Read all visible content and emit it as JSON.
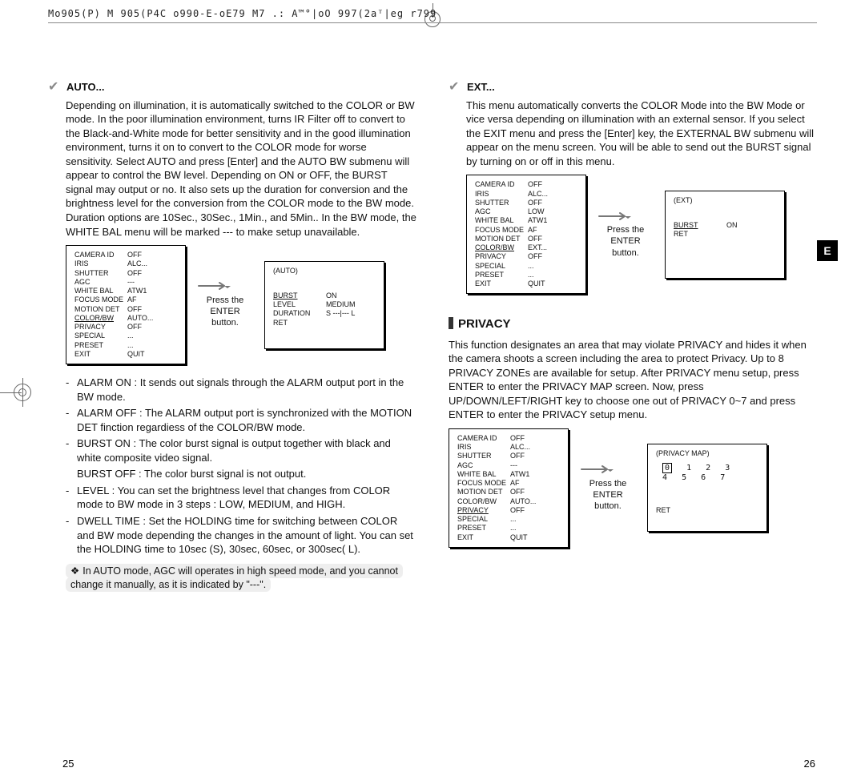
{
  "header_code": "Mo905(P) M 905(P4C o990-E-oE79 M7 .: A™°|oO 997(2aᵀ|eg r799",
  "left": {
    "auto_title": "AUTO...",
    "auto_body": "Depending on illumination, it is automatically switched to the COLOR or BW mode. In the poor illumination environment, turns IR Filter off to convert to the Black-and-White mode for better sensitivity and in the good illumination environment, turns it on to convert to the COLOR mode for worse sensitivity. Select AUTO and press [Enter] and the AUTO BW submenu will appear to control the BW level. Depending on ON or OFF, the BURST signal may output or no. It also sets up the duration for conversion and the brightness level for the conversion from the COLOR mode to the BW mode. Duration options are 10Sec., 30Sec., 1Min., and 5Min.. In the BW mode, the WHITE BAL menu will be marked --- to make setup unavailable.",
    "menu1": {
      "rows": [
        [
          "CAMERA ID",
          "OFF"
        ],
        [
          "IRIS",
          "ALC..."
        ],
        [
          "SHUTTER",
          "OFF"
        ],
        [
          "AGC",
          "---"
        ],
        [
          "WHITE BAL",
          "ATW1"
        ],
        [
          "FOCUS MODE",
          "AF"
        ],
        [
          "MOTION DET",
          "OFF"
        ],
        [
          "COLOR/BW",
          "AUTO..."
        ],
        [
          "PRIVACY",
          "OFF"
        ],
        [
          "SPECIAL",
          "..."
        ],
        [
          "PRESET",
          "..."
        ],
        [
          "EXIT",
          "QUIT"
        ]
      ],
      "highlight": 7
    },
    "menu1_caption": "Press the ENTER button.",
    "menu1b": {
      "title": "(AUTO)",
      "rows": [
        [
          "BURST",
          "ON"
        ],
        [
          "LEVEL",
          "MEDIUM"
        ],
        [
          "DURATION",
          "S ---|--- L"
        ],
        [
          "RET",
          ""
        ]
      ],
      "highlight": 0
    },
    "bullets": [
      {
        "lead": "ALARM ON :",
        "text": "It sends out signals through the ALARM output port in the BW mode."
      },
      {
        "lead": "ALARM OFF :",
        "text": "The ALARM output port is synchronized with the MOTION DET finction regardiess of the COLOR/BW mode."
      },
      {
        "lead": "BURST ON :",
        "text": "The color burst signal is output together with black and white composite video signal.",
        "sub": "BURST OFF : The color burst signal is not output."
      },
      {
        "lead": "LEVEL :",
        "text": "You can set the brightness level that changes from COLOR mode to BW mode in 3 steps : LOW, MEDIUM, and HIGH."
      },
      {
        "lead": "DWELL TIME :",
        "text": "Set the HOLDING time for switching between COLOR and BW mode depending the changes in the amount of light. You can set the HOLDING time to 10sec (S), 30sec, 60sec, or 300sec( L)."
      }
    ],
    "note": "In AUTO mode, AGC will operates in high speed mode, and you cannot change it manually, as it is indicated by \"---\".",
    "pagenum": "25"
  },
  "right": {
    "ext_title": "EXT...",
    "ext_body": "This menu automatically converts the COLOR Mode into the BW Mode or vice versa depending on illumination with an external sensor. If you select the EXIT menu and press the [Enter] key, the EXTERNAL BW submenu will appear on the menu screen. You will be able to send out the BURST signal by turning on or off in this menu.",
    "menu2": {
      "rows": [
        [
          "CAMERA ID",
          "OFF"
        ],
        [
          "IRIS",
          "ALC..."
        ],
        [
          "SHUTTER",
          "OFF"
        ],
        [
          "AGC",
          "LOW"
        ],
        [
          "WHITE BAL",
          "ATW1"
        ],
        [
          "FOCUS MODE",
          "AF"
        ],
        [
          "MOTION DET",
          "OFF"
        ],
        [
          "COLOR/BW",
          "EXT..."
        ],
        [
          "PRIVACY",
          "OFF"
        ],
        [
          "SPECIAL",
          "..."
        ],
        [
          "PRESET",
          "..."
        ],
        [
          "EXIT",
          "QUIT"
        ]
      ],
      "highlight": 7
    },
    "menu2_caption": "Press the ENTER button.",
    "menu2b": {
      "title": "(EXT)",
      "rows": [
        [
          "BURST",
          "ON"
        ],
        [
          "RET",
          ""
        ]
      ],
      "highlight": 0
    },
    "privacy_title": "PRIVACY",
    "privacy_body": "This function designates an area that may violate PRIVACY and hides it when the camera shoots a screen including the area to protect Privacy. Up to 8 PRIVACY ZONEs are available for setup. After PRIVACY menu setup, press ENTER to enter the PRIVACY MAP screen. Now, press UP/DOWN/LEFT/RIGHT key to choose one out of PRIVACY 0~7 and press ENTER to enter the PRIVACY setup menu.",
    "menu3": {
      "rows": [
        [
          "CAMERA ID",
          "OFF"
        ],
        [
          "IRIS",
          "ALC..."
        ],
        [
          "SHUTTER",
          "OFF"
        ],
        [
          "AGC",
          "---"
        ],
        [
          "WHITE BAL",
          "ATW1"
        ],
        [
          "FOCUS MODE",
          "AF"
        ],
        [
          "MOTION DET",
          "OFF"
        ],
        [
          "COLOR/BW",
          "AUTO..."
        ],
        [
          "PRIVACY",
          "OFF"
        ],
        [
          "SPECIAL",
          "..."
        ],
        [
          "PRESET",
          "..."
        ],
        [
          "EXIT",
          "QUIT"
        ]
      ],
      "highlight": 8
    },
    "menu3_caption": "Press the ENTER button.",
    "privacymap_title": "(PRIVACY MAP)",
    "privacymap_row1": "0   1   2   3",
    "privacymap_row2": "4   5   6   7",
    "privacymap_ret": "RET",
    "side_tab": "E",
    "pagenum": "26"
  }
}
